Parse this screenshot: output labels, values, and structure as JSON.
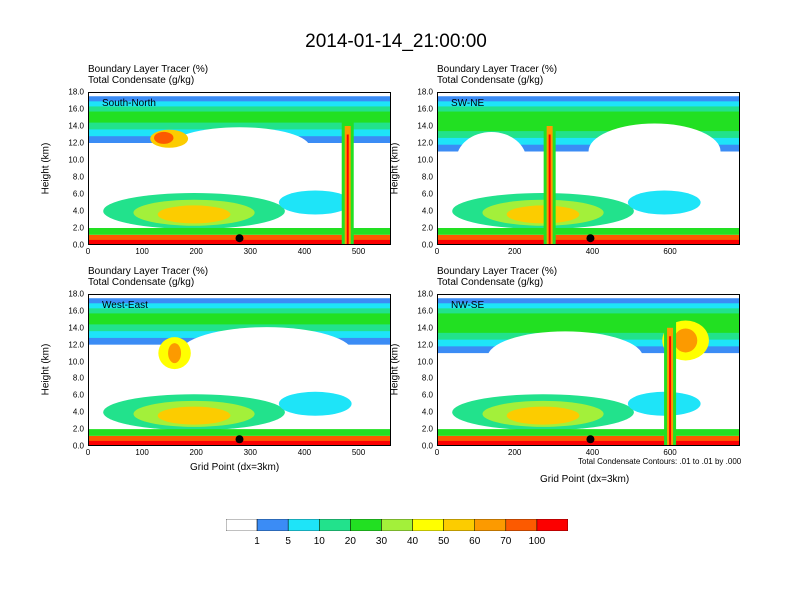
{
  "title": "2014-01-14_21:00:00",
  "panel_labels": {
    "line1": "Boundary Layer Tracer   (%)",
    "line2": "Total Condensate   (g/kg)"
  },
  "y_axis_label": "Height (km)",
  "x_axis_label": "Grid Point (dx=3km)",
  "footnote": "Total Condensate Contours: .01 to .01 by .000",
  "colors": {
    "levels": [
      "#ffffff",
      "#3b8cf5",
      "#1ee4f8",
      "#22e28c",
      "#22e022",
      "#a3f03a",
      "#ffff00",
      "#fccc00",
      "#fc9a00",
      "#fc5a00",
      "#fc0000"
    ]
  },
  "colorbar_labels": [
    "1",
    "5",
    "10",
    "20",
    "30",
    "40",
    "50",
    "60",
    "70",
    "100"
  ],
  "chart_data": [
    {
      "type": "heatmap",
      "region": "South-North",
      "xlim": [
        0,
        560
      ],
      "ylim": [
        0,
        18
      ],
      "x_ticks": [
        "0",
        "100",
        "200",
        "300",
        "400",
        "500"
      ],
      "y_ticks": [
        "0.0",
        "2.0",
        "4.0",
        "6.0",
        "8.0",
        "10.0",
        "12.0",
        "14.0",
        "16.0",
        "18.0"
      ],
      "marker_x": 280,
      "cross_section": "cloud layer 12-16 km, convective plume near x=480"
    },
    {
      "type": "heatmap",
      "region": "SW-NE",
      "xlim": [
        0,
        780
      ],
      "ylim": [
        0,
        18
      ],
      "x_ticks": [
        "0",
        "200",
        "400",
        "600"
      ],
      "y_ticks": [
        "0.0",
        "2.0",
        "4.0",
        "6.0",
        "8.0",
        "10.0",
        "12.0",
        "14.0",
        "16.0",
        "18.0"
      ],
      "marker_x": 395,
      "cross_section": "deep convective column near x=290"
    },
    {
      "type": "heatmap",
      "region": "West-East",
      "xlim": [
        0,
        560
      ],
      "ylim": [
        0,
        18
      ],
      "x_ticks": [
        "0",
        "100",
        "200",
        "300",
        "400",
        "500"
      ],
      "y_ticks": [
        "0.0",
        "2.0",
        "4.0",
        "6.0",
        "8.0",
        "10.0",
        "12.0",
        "14.0",
        "16.0",
        "18.0"
      ],
      "marker_x": 280,
      "cross_section": "upper layer 13-17 km, mid-level band 3-8 km"
    },
    {
      "type": "heatmap",
      "region": "NW-SE",
      "xlim": [
        0,
        780
      ],
      "ylim": [
        0,
        18
      ],
      "x_ticks": [
        "0",
        "200",
        "400",
        "600"
      ],
      "y_ticks": [
        "0.0",
        "2.0",
        "4.0",
        "6.0",
        "8.0",
        "10.0",
        "12.0",
        "14.0",
        "16.0",
        "18.0"
      ],
      "marker_x": 395,
      "cross_section": "upper layer 12-17 km, plume near x=600"
    }
  ]
}
